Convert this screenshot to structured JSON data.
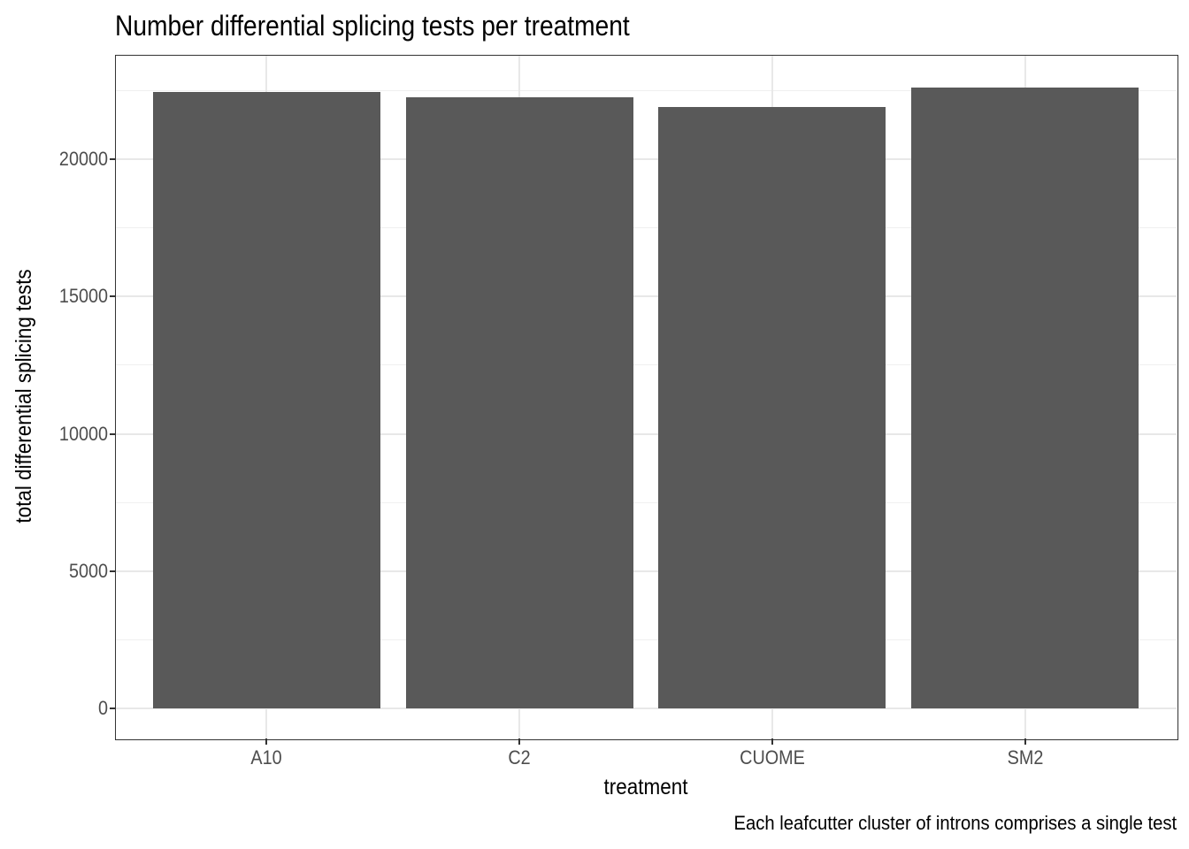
{
  "chart_data": {
    "type": "bar",
    "title": "Number differential splicing tests per treatment",
    "xlabel": "treatment",
    "ylabel": "total differential splicing tests",
    "caption": "Each leafcutter cluster of introns comprises a single test",
    "categories": [
      "A10",
      "C2",
      "CUOME",
      "SM2"
    ],
    "values": [
      22430,
      22240,
      21900,
      22610
    ],
    "y_ticks": [
      0,
      5000,
      10000,
      15000,
      20000
    ],
    "y_minor_ticks": [
      2500,
      7500,
      12500,
      17500,
      22500
    ],
    "ylim_panel": [
      -1080,
      23790
    ],
    "grid": true,
    "legend": false,
    "bar_width_ratio": 0.9,
    "colors": {
      "bar_fill": "#595959",
      "grid_major": "#e8e8e8",
      "grid_minor": "#f0f0f0",
      "panel_border": "#333333",
      "tick": "#333333",
      "tick_label": "#4d4d4d",
      "text": "#000000",
      "background": "#ffffff"
    }
  }
}
